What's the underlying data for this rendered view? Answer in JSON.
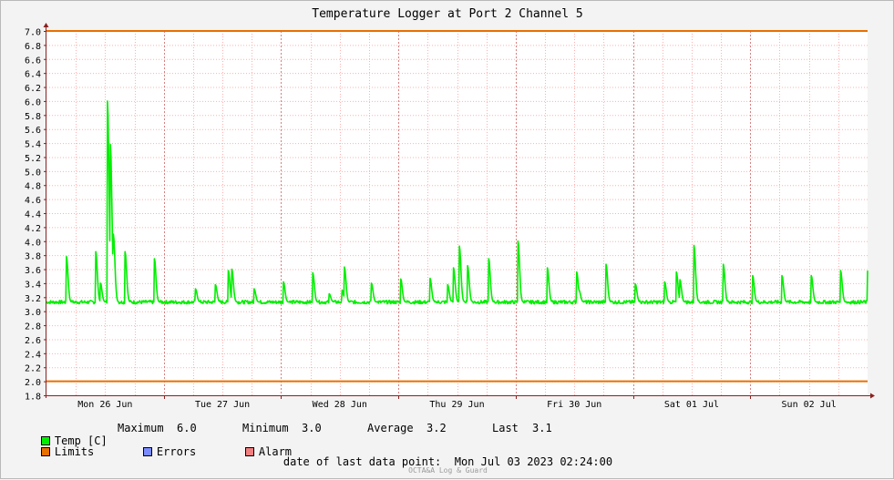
{
  "chart_data": {
    "type": "line",
    "title": "Temperature Logger at Port 2 Channel 5",
    "ylim": [
      1.8,
      7.0
    ],
    "yticks": [
      "7.0",
      "6.8",
      "6.6",
      "6.4",
      "6.2",
      "6.0",
      "5.8",
      "5.6",
      "5.4",
      "5.2",
      "5.0",
      "4.8",
      "4.6",
      "4.4",
      "4.2",
      "4.0",
      "3.8",
      "3.6",
      "3.4",
      "3.2",
      "3.0",
      "2.8",
      "2.6",
      "2.4",
      "2.2",
      "2.0",
      "1.8"
    ],
    "xlim": [
      0,
      7.0
    ],
    "xticks": [
      {
        "label": "Mon 26 Jun",
        "day": 0.5
      },
      {
        "label": "Tue 27 Jun",
        "day": 1.5
      },
      {
        "label": "Wed 28 Jun",
        "day": 2.5
      },
      {
        "label": "Thu 29 Jun",
        "day": 3.5
      },
      {
        "label": "Fri 30 Jun",
        "day": 4.5
      },
      {
        "label": "Sat 01 Jul",
        "day": 5.5
      },
      {
        "label": "Sun 02 Jul",
        "day": 6.5
      }
    ],
    "limits": [
      7.0,
      2.0
    ],
    "series": [
      {
        "name": "Temp [C]",
        "baseline": 3.13,
        "peaks": [
          [
            0.17,
            3.78
          ],
          [
            0.42,
            3.85
          ],
          [
            0.46,
            3.4
          ],
          [
            0.52,
            6.0
          ],
          [
            0.545,
            5.38
          ],
          [
            0.57,
            4.1
          ],
          [
            0.67,
            3.85
          ],
          [
            0.92,
            3.75
          ],
          [
            1.27,
            3.32
          ],
          [
            1.44,
            3.38
          ],
          [
            1.55,
            3.58
          ],
          [
            1.58,
            3.6
          ],
          [
            1.77,
            3.32
          ],
          [
            2.02,
            3.42
          ],
          [
            2.27,
            3.55
          ],
          [
            2.41,
            3.25
          ],
          [
            2.52,
            3.3
          ],
          [
            2.54,
            3.63
          ],
          [
            2.77,
            3.4
          ],
          [
            3.02,
            3.46
          ],
          [
            3.27,
            3.47
          ],
          [
            3.42,
            3.38
          ],
          [
            3.47,
            3.62
          ],
          [
            3.52,
            3.93
          ],
          [
            3.59,
            3.65
          ],
          [
            3.77,
            3.75
          ],
          [
            4.02,
            4.0
          ],
          [
            4.27,
            3.62
          ],
          [
            4.52,
            3.56
          ],
          [
            4.54,
            3.3
          ],
          [
            4.77,
            3.67
          ],
          [
            5.02,
            3.39
          ],
          [
            5.27,
            3.42
          ],
          [
            5.37,
            3.56
          ],
          [
            5.4,
            3.45
          ],
          [
            5.52,
            3.94
          ],
          [
            5.77,
            3.67
          ],
          [
            6.02,
            3.51
          ],
          [
            6.27,
            3.51
          ],
          [
            6.52,
            3.51
          ],
          [
            6.77,
            3.58
          ],
          [
            7.0,
            3.58
          ]
        ]
      }
    ],
    "legend": {
      "temp_label": "Temp [C]",
      "limits_label": "Limits",
      "errors_label": "Errors",
      "alarm_label": "Alarm",
      "maximum_label": "Maximum",
      "maximum_value": "6.0",
      "minimum_label": "Minimum",
      "minimum_value": "3.0",
      "average_label": "Average",
      "average_value": "3.2",
      "last_label": "Last",
      "last_value": "3.1"
    },
    "colors": {
      "series": "#00ee00",
      "limits": "#e87000",
      "errors": "#7a8cff",
      "alarm": "#f07f7f",
      "grid": "#ffb0b0",
      "major_grid": "#d88080",
      "axis": "#8b2020"
    },
    "grid": true,
    "date_of_last_label": "date of last data point:",
    "date_of_last_value": "Mon Jul 03 2023 02:24:00",
    "watermark": "OCTA&A Log & Guard"
  }
}
